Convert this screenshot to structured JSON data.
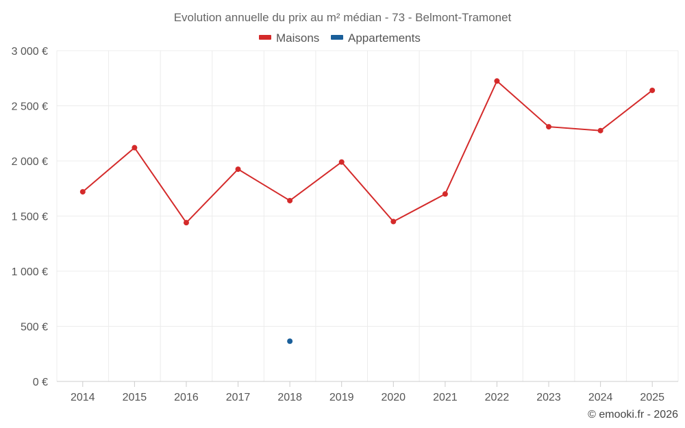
{
  "chart_data": {
    "type": "line",
    "title": "Evolution annuelle du prix au m² médian - 73 - Belmont-Tramonet",
    "categories": [
      "2014",
      "2015",
      "2016",
      "2017",
      "2018",
      "2019",
      "2020",
      "2021",
      "2022",
      "2023",
      "2024",
      "2025"
    ],
    "ylim": [
      0,
      3000
    ],
    "yticks": [
      0,
      500,
      1000,
      1500,
      2000,
      2500,
      3000
    ],
    "ytick_labels": [
      "0 €",
      "500 €",
      "1 000 €",
      "1 500 €",
      "2 000 €",
      "2 500 €",
      "3 000 €"
    ],
    "grid": true,
    "legend_position": "top-center",
    "series": [
      {
        "name": "Maisons",
        "color": "#d42a2a",
        "values": [
          1720,
          2120,
          1440,
          1925,
          1640,
          1990,
          1450,
          1700,
          2725,
          2310,
          2275,
          2640
        ]
      },
      {
        "name": "Appartements",
        "color": "#1a5f9a",
        "values": [
          null,
          null,
          null,
          null,
          365,
          null,
          null,
          null,
          null,
          null,
          null,
          null
        ]
      }
    ]
  },
  "footer": {
    "credit": "© emooki.fr - 2026"
  }
}
